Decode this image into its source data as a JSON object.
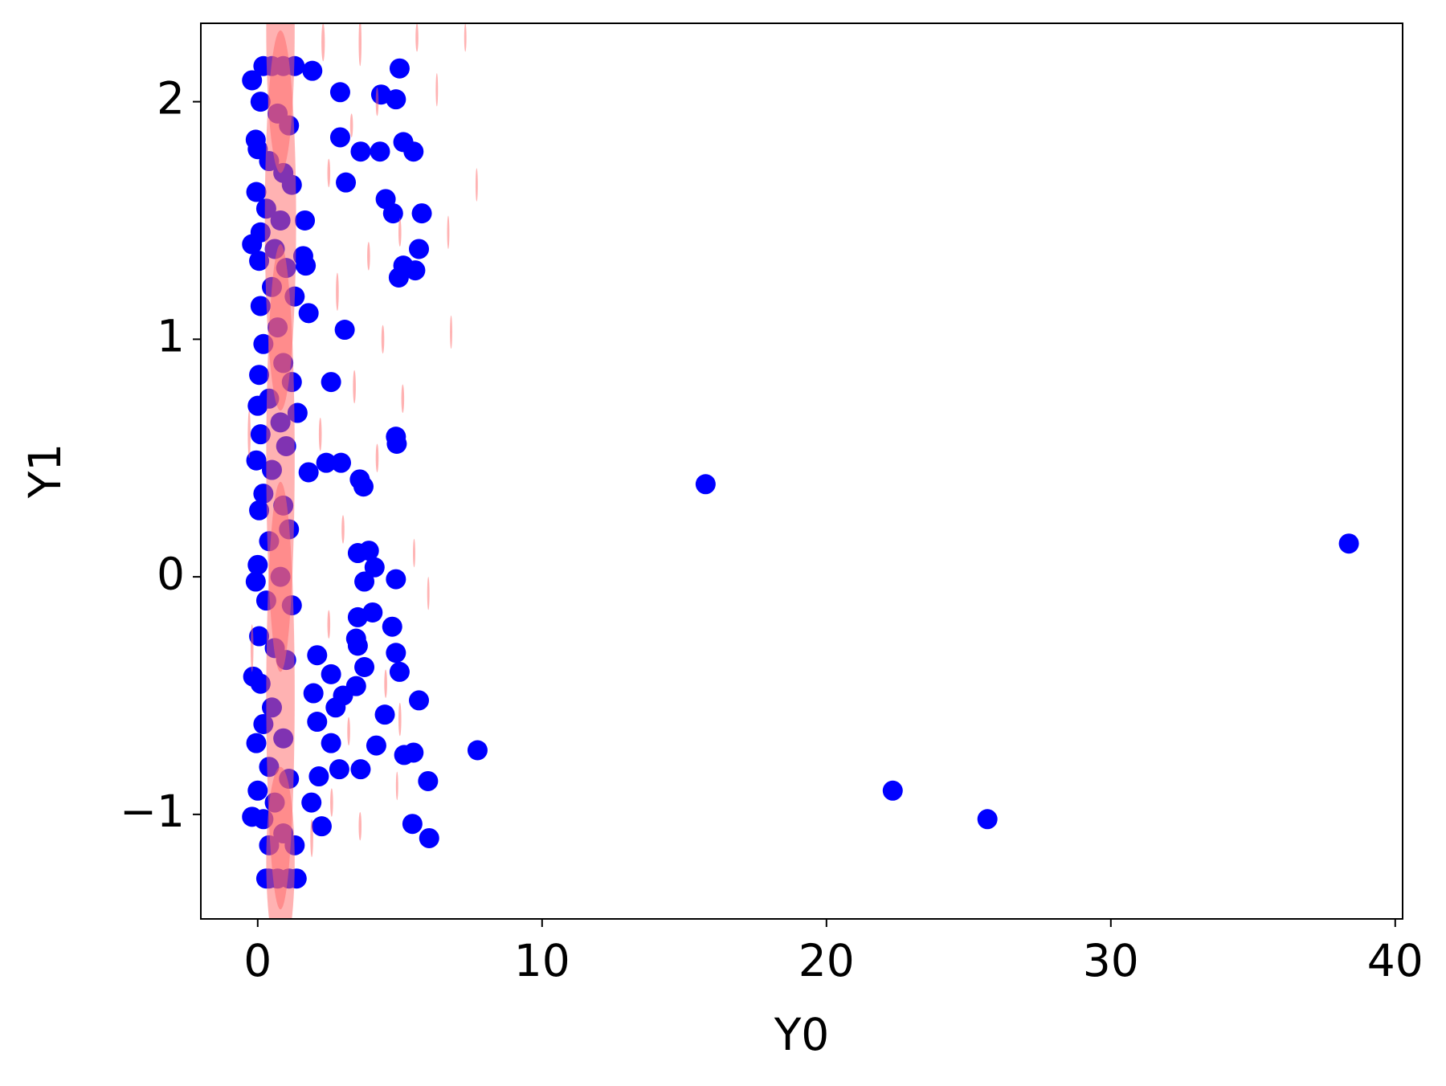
{
  "chart_data": {
    "type": "scatter",
    "x_label": "Y0",
    "y_label": "Y1",
    "xlim": [
      -2,
      40.26
    ],
    "ylim": [
      -1.44,
      2.33
    ],
    "xticks": [
      0,
      10,
      20,
      30,
      40
    ],
    "yticks": [
      {
        "value": -1,
        "label": "−1"
      },
      0,
      1,
      2
    ],
    "series": [
      {
        "color": "#0000ff",
        "kind": "points",
        "x": [
          15.75,
          38.37,
          22.33,
          25.66,
          7.73,
          4.99,
          2.9,
          4.34,
          4.86,
          2.9,
          3.62,
          4.3,
          5.12,
          5.48,
          3.1,
          4.5,
          4.76,
          5.77,
          5.67,
          5.12,
          5.54,
          4.96,
          3.06,
          2.58,
          4.86,
          4.89,
          2.41,
          2.93,
          3.59,
          3.72,
          1.79,
          3.52,
          3.91,
          4.11,
          3.75,
          4.86,
          4.04,
          3.52,
          4.73,
          3.46,
          3.52,
          4.86,
          2.09,
          4.99,
          2.58,
          3.75,
          3.46,
          3.0,
          1.96,
          2.74,
          5.67,
          4.47,
          2.09,
          2.58,
          4.17,
          5.15,
          5.48,
          3.62,
          2.87,
          5.99,
          2.15,
          1.89,
          5.44,
          2.25,
          6.03,
          1.3,
          1.37,
          0.39,
          -0.2,
          -0.07,
          -0.2,
          -0.07,
          -0.16,
          -0.2,
          1.66,
          1.69,
          1.79,
          1.4,
          1.6,
          1.92,
          0.2,
          0.5,
          0.9,
          1.3,
          0.1,
          0.7,
          1.1,
          0.0,
          0.4,
          0.9,
          1.2,
          -0.05,
          0.3,
          0.8,
          0.1,
          0.6,
          1.0,
          0.05,
          0.5,
          1.3,
          0.1,
          0.7,
          0.2,
          0.9,
          0.05,
          1.2,
          0.4,
          0.0,
          0.8,
          0.1,
          1.0,
          -0.05,
          0.5,
          0.2,
          0.9,
          0.05,
          1.1,
          0.4,
          0.0,
          0.8,
          0.3,
          1.2,
          0.05,
          0.6,
          1.0,
          0.1,
          0.5,
          0.2,
          0.9,
          -0.05,
          0.4,
          1.1,
          0.0,
          0.6,
          0.2,
          0.9,
          0.4,
          0.3,
          0.7,
          1.1
        ],
        "values": [
          0.39,
          0.14,
          -0.9,
          -1.02,
          -0.73,
          2.14,
          2.04,
          2.03,
          2.01,
          1.85,
          1.79,
          1.79,
          1.83,
          1.79,
          1.66,
          1.59,
          1.53,
          1.53,
          1.38,
          1.31,
          1.29,
          1.26,
          1.04,
          0.82,
          0.59,
          0.56,
          0.48,
          0.48,
          0.41,
          0.38,
          0.44,
          0.1,
          0.11,
          0.04,
          -0.02,
          -0.01,
          -0.15,
          -0.17,
          -0.21,
          -0.26,
          -0.29,
          -0.32,
          -0.33,
          -0.4,
          -0.41,
          -0.38,
          -0.46,
          -0.5,
          -0.49,
          -0.55,
          -0.52,
          -0.58,
          -0.61,
          -0.7,
          -0.71,
          -0.75,
          -0.74,
          -0.81,
          -0.81,
          -0.86,
          -0.84,
          -0.95,
          -1.04,
          -1.05,
          -1.1,
          -1.13,
          -1.27,
          -1.27,
          2.09,
          1.84,
          1.4,
          -0.02,
          -0.42,
          -1.01,
          1.5,
          1.31,
          1.11,
          0.69,
          1.35,
          2.13,
          2.15,
          2.15,
          2.15,
          2.15,
          2.0,
          1.95,
          1.9,
          1.8,
          1.75,
          1.7,
          1.65,
          1.62,
          1.55,
          1.5,
          1.45,
          1.38,
          1.3,
          1.33,
          1.22,
          1.18,
          1.14,
          1.05,
          0.98,
          0.9,
          0.85,
          0.82,
          0.75,
          0.72,
          0.65,
          0.6,
          0.55,
          0.49,
          0.45,
          0.35,
          0.3,
          0.28,
          0.2,
          0.15,
          0.05,
          0.0,
          -0.1,
          -0.12,
          -0.25,
          -0.3,
          -0.35,
          -0.45,
          -0.55,
          -0.62,
          -0.68,
          -0.7,
          -0.8,
          -0.85,
          -0.9,
          -0.95,
          -1.02,
          -1.08,
          -1.13,
          -1.27,
          -1.27,
          -1.27
        ]
      },
      {
        "color": "#ff6666",
        "kind": "ellipses",
        "x": [
          0.8,
          0.8,
          0.8,
          0.8,
          0.8,
          2.3,
          3.6,
          5.6,
          7.3,
          4.2,
          6.3,
          2.5,
          3.3,
          7.7,
          6.7,
          5.0,
          3.9,
          2.8,
          6.8,
          4.4,
          3.4,
          5.1,
          2.2,
          4.2,
          3.0,
          5.5,
          6.0,
          2.5,
          4.5,
          3.2,
          5.0,
          2.6,
          4.9,
          3.6,
          1.9,
          -0.2,
          -0.3
        ],
        "values": [
          2.3,
          1.5,
          0.5,
          -0.5,
          -1.2,
          2.25,
          2.25,
          2.27,
          2.27,
          2.0,
          2.05,
          1.7,
          1.9,
          1.65,
          1.45,
          1.45,
          1.35,
          1.2,
          1.03,
          1.0,
          0.8,
          0.75,
          0.6,
          0.5,
          0.2,
          0.1,
          -0.07,
          -0.2,
          -0.45,
          -0.65,
          -0.6,
          -0.95,
          -0.88,
          -1.05,
          -1.1,
          -0.3,
          0.6
        ],
        "xerr": [
          0.5,
          0.55,
          0.5,
          0.5,
          0.5,
          0.06,
          0.05,
          0.05,
          0.04,
          0.05,
          0.04,
          0.05,
          0.05,
          0.04,
          0.04,
          0.05,
          0.05,
          0.05,
          0.04,
          0.05,
          0.05,
          0.05,
          0.05,
          0.05,
          0.05,
          0.04,
          0.04,
          0.05,
          0.05,
          0.05,
          0.05,
          0.05,
          0.04,
          0.05,
          0.05,
          0.05,
          0.05
        ],
        "yerr": [
          0.6,
          0.8,
          0.9,
          0.9,
          0.4,
          0.08,
          0.1,
          0.06,
          0.06,
          0.06,
          0.07,
          0.06,
          0.05,
          0.07,
          0.07,
          0.06,
          0.06,
          0.08,
          0.07,
          0.06,
          0.07,
          0.06,
          0.07,
          0.06,
          0.06,
          0.06,
          0.07,
          0.06,
          0.06,
          0.06,
          0.07,
          0.06,
          0.06,
          0.06,
          0.08,
          0.1,
          0.1
        ]
      }
    ]
  }
}
